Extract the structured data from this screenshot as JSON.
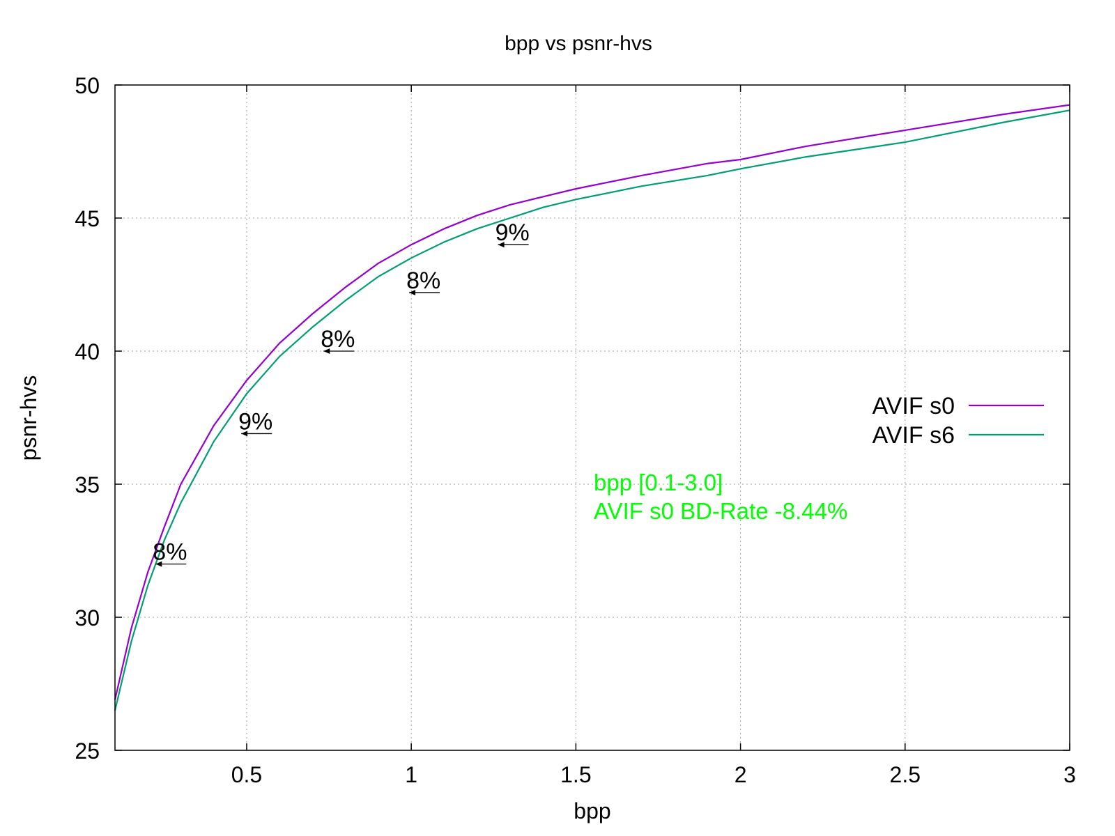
{
  "chart_data": {
    "type": "line",
    "title": "bpp vs psnr-hvs",
    "xlabel": "bpp",
    "ylabel": "psnr-hvs",
    "xlim": [
      0.1,
      3.0
    ],
    "ylim": [
      25,
      50
    ],
    "xticks": [
      0.5,
      1,
      1.5,
      2,
      2.5,
      3
    ],
    "yticks": [
      25,
      30,
      35,
      40,
      45,
      50
    ],
    "grid": true,
    "legend_position": "right",
    "series": [
      {
        "name": "AVIF s0",
        "color": "#9400d3",
        "x": [
          0.1,
          0.15,
          0.2,
          0.25,
          0.3,
          0.4,
          0.5,
          0.6,
          0.7,
          0.8,
          0.9,
          1.0,
          1.1,
          1.2,
          1.3,
          1.4,
          1.5,
          1.7,
          1.9,
          2.0,
          2.2,
          2.5,
          2.8,
          3.0
        ],
        "y": [
          26.9,
          29.6,
          31.7,
          33.4,
          35.0,
          37.2,
          38.9,
          40.3,
          41.4,
          42.4,
          43.3,
          44.0,
          44.6,
          45.1,
          45.5,
          45.8,
          46.1,
          46.6,
          47.05,
          47.2,
          47.7,
          48.3,
          48.9,
          49.25
        ]
      },
      {
        "name": "AVIF s6",
        "color": "#009e73",
        "x": [
          0.1,
          0.15,
          0.2,
          0.25,
          0.3,
          0.4,
          0.5,
          0.6,
          0.7,
          0.8,
          0.9,
          1.0,
          1.1,
          1.2,
          1.3,
          1.4,
          1.5,
          1.7,
          1.9,
          2.0,
          2.2,
          2.5,
          2.8,
          3.0
        ],
        "y": [
          26.5,
          29.1,
          31.2,
          32.9,
          34.3,
          36.6,
          38.4,
          39.8,
          40.9,
          41.9,
          42.8,
          43.5,
          44.1,
          44.6,
          45.0,
          45.4,
          45.7,
          46.2,
          46.6,
          46.85,
          47.3,
          47.85,
          48.6,
          49.05
        ]
      }
    ],
    "annotations": [
      {
        "text": "8%",
        "x": 0.27,
        "y": 32.0
      },
      {
        "text": "9%",
        "x": 0.53,
        "y": 36.9
      },
      {
        "text": "8%",
        "x": 0.78,
        "y": 40.0
      },
      {
        "text": "8%",
        "x": 1.04,
        "y": 42.2
      },
      {
        "text": "9%",
        "x": 1.31,
        "y": 44.0
      }
    ],
    "info_text": {
      "color": "#00ff00",
      "lines": [
        "bpp [0.1-3.0]",
        "AVIF s0 BD-Rate -8.44%"
      ]
    }
  }
}
